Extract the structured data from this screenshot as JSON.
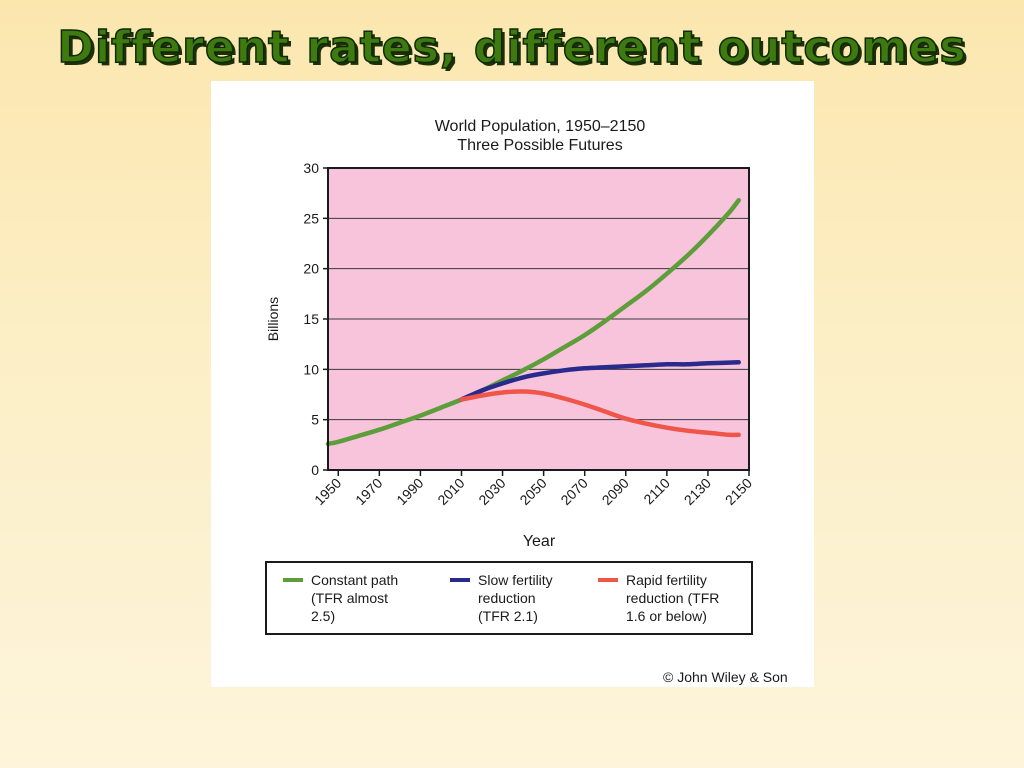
{
  "slide": {
    "title": "Different rates, different outcomes"
  },
  "credit": "© John Wiley & Son",
  "colors": {
    "plot_background": "#f8c4dc",
    "constant_path": "#5d9e3a",
    "slow_fertility": "#2a2a8c",
    "rapid_fertility": "#f0554a"
  },
  "chart_data": {
    "type": "line",
    "title": "World Population, 1950–2150",
    "subtitle": "Three Possible Futures",
    "xlabel": "Year",
    "ylabel": "Billions",
    "xlim": [
      1945,
      2150
    ],
    "ylim": [
      0,
      30
    ],
    "x_ticks": [
      1950,
      1970,
      1990,
      2010,
      2030,
      2050,
      2070,
      2090,
      2110,
      2130,
      2150
    ],
    "y_ticks": [
      0,
      5,
      10,
      15,
      20,
      25,
      30
    ],
    "grid": "horizontal",
    "legend_position": "bottom",
    "series": [
      {
        "name": "Constant path (TFR almost 2.5)",
        "legend_lines": [
          "Constant path",
          "(TFR almost",
          "2.5)"
        ],
        "color": "#5d9e3a",
        "x": [
          1945,
          1950,
          1960,
          1970,
          1980,
          1990,
          2000,
          2010,
          2020,
          2030,
          2040,
          2050,
          2060,
          2070,
          2080,
          2090,
          2100,
          2110,
          2120,
          2130,
          2140,
          2145
        ],
        "y": [
          2.6,
          2.8,
          3.4,
          4.0,
          4.7,
          5.4,
          6.2,
          7.0,
          7.9,
          8.9,
          9.9,
          11.0,
          12.2,
          13.4,
          14.8,
          16.3,
          17.8,
          19.5,
          21.3,
          23.3,
          25.5,
          26.8
        ]
      },
      {
        "name": "Slow fertility reduction (TFR 2.1)",
        "legend_lines": [
          "Slow fertility",
          "reduction",
          "(TFR 2.1)"
        ],
        "color": "#2a2a8c",
        "x": [
          2010,
          2020,
          2030,
          2040,
          2050,
          2060,
          2070,
          2080,
          2090,
          2100,
          2110,
          2120,
          2130,
          2145
        ],
        "y": [
          7.0,
          7.9,
          8.6,
          9.2,
          9.6,
          9.9,
          10.1,
          10.2,
          10.3,
          10.4,
          10.5,
          10.5,
          10.6,
          10.7
        ]
      },
      {
        "name": "Rapid fertility reduction (TFR 1.6 or below)",
        "legend_lines": [
          "Rapid fertility",
          "reduction (TFR",
          "1.6 or below)"
        ],
        "color": "#f0554a",
        "x": [
          2010,
          2020,
          2030,
          2040,
          2050,
          2060,
          2070,
          2080,
          2090,
          2100,
          2110,
          2120,
          2130,
          2140,
          2145
        ],
        "y": [
          7.0,
          7.4,
          7.7,
          7.8,
          7.6,
          7.1,
          6.5,
          5.8,
          5.1,
          4.6,
          4.2,
          3.9,
          3.7,
          3.5,
          3.5
        ]
      }
    ]
  }
}
